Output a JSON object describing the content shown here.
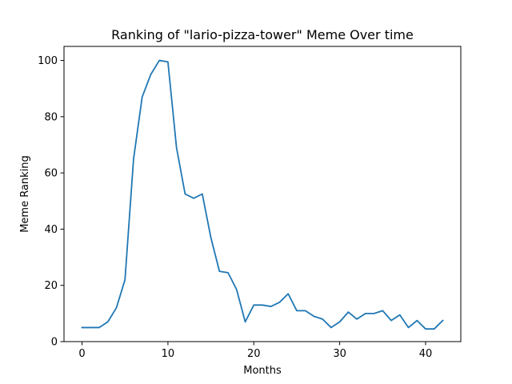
{
  "chart_data": {
    "type": "line",
    "title": "Ranking of \"lario-pizza-tower\" Meme Over time",
    "xlabel": "Months",
    "ylabel": "Meme Ranking",
    "xlim": [
      -2.1,
      44.1
    ],
    "ylim": [
      0,
      105
    ],
    "xticks": [
      0,
      10,
      20,
      30,
      40
    ],
    "yticks": [
      0,
      20,
      40,
      60,
      80,
      100
    ],
    "grid": false,
    "line_color": "#1f77b4",
    "series": [
      {
        "x": [
          0,
          1,
          2,
          3,
          4,
          5,
          6,
          7,
          8,
          9,
          10,
          11,
          12,
          13,
          14,
          15,
          16,
          17,
          18,
          19,
          20,
          21,
          22,
          23,
          24,
          25,
          26,
          27,
          28,
          29,
          30,
          31,
          32,
          33,
          34,
          35,
          36,
          37,
          38,
          39,
          40,
          41,
          42
        ],
        "values": [
          5,
          5,
          5,
          7,
          12,
          22,
          65,
          87,
          95,
          100,
          99.5,
          69,
          52.5,
          51,
          52.5,
          37,
          25,
          24.5,
          18.5,
          7,
          13,
          13,
          12.5,
          14,
          17,
          11,
          11,
          9,
          8,
          5,
          7,
          10.5,
          8,
          10,
          10,
          11,
          7.5,
          9.5,
          5,
          7.5,
          4.5,
          4.5,
          7.5
        ]
      }
    ]
  }
}
